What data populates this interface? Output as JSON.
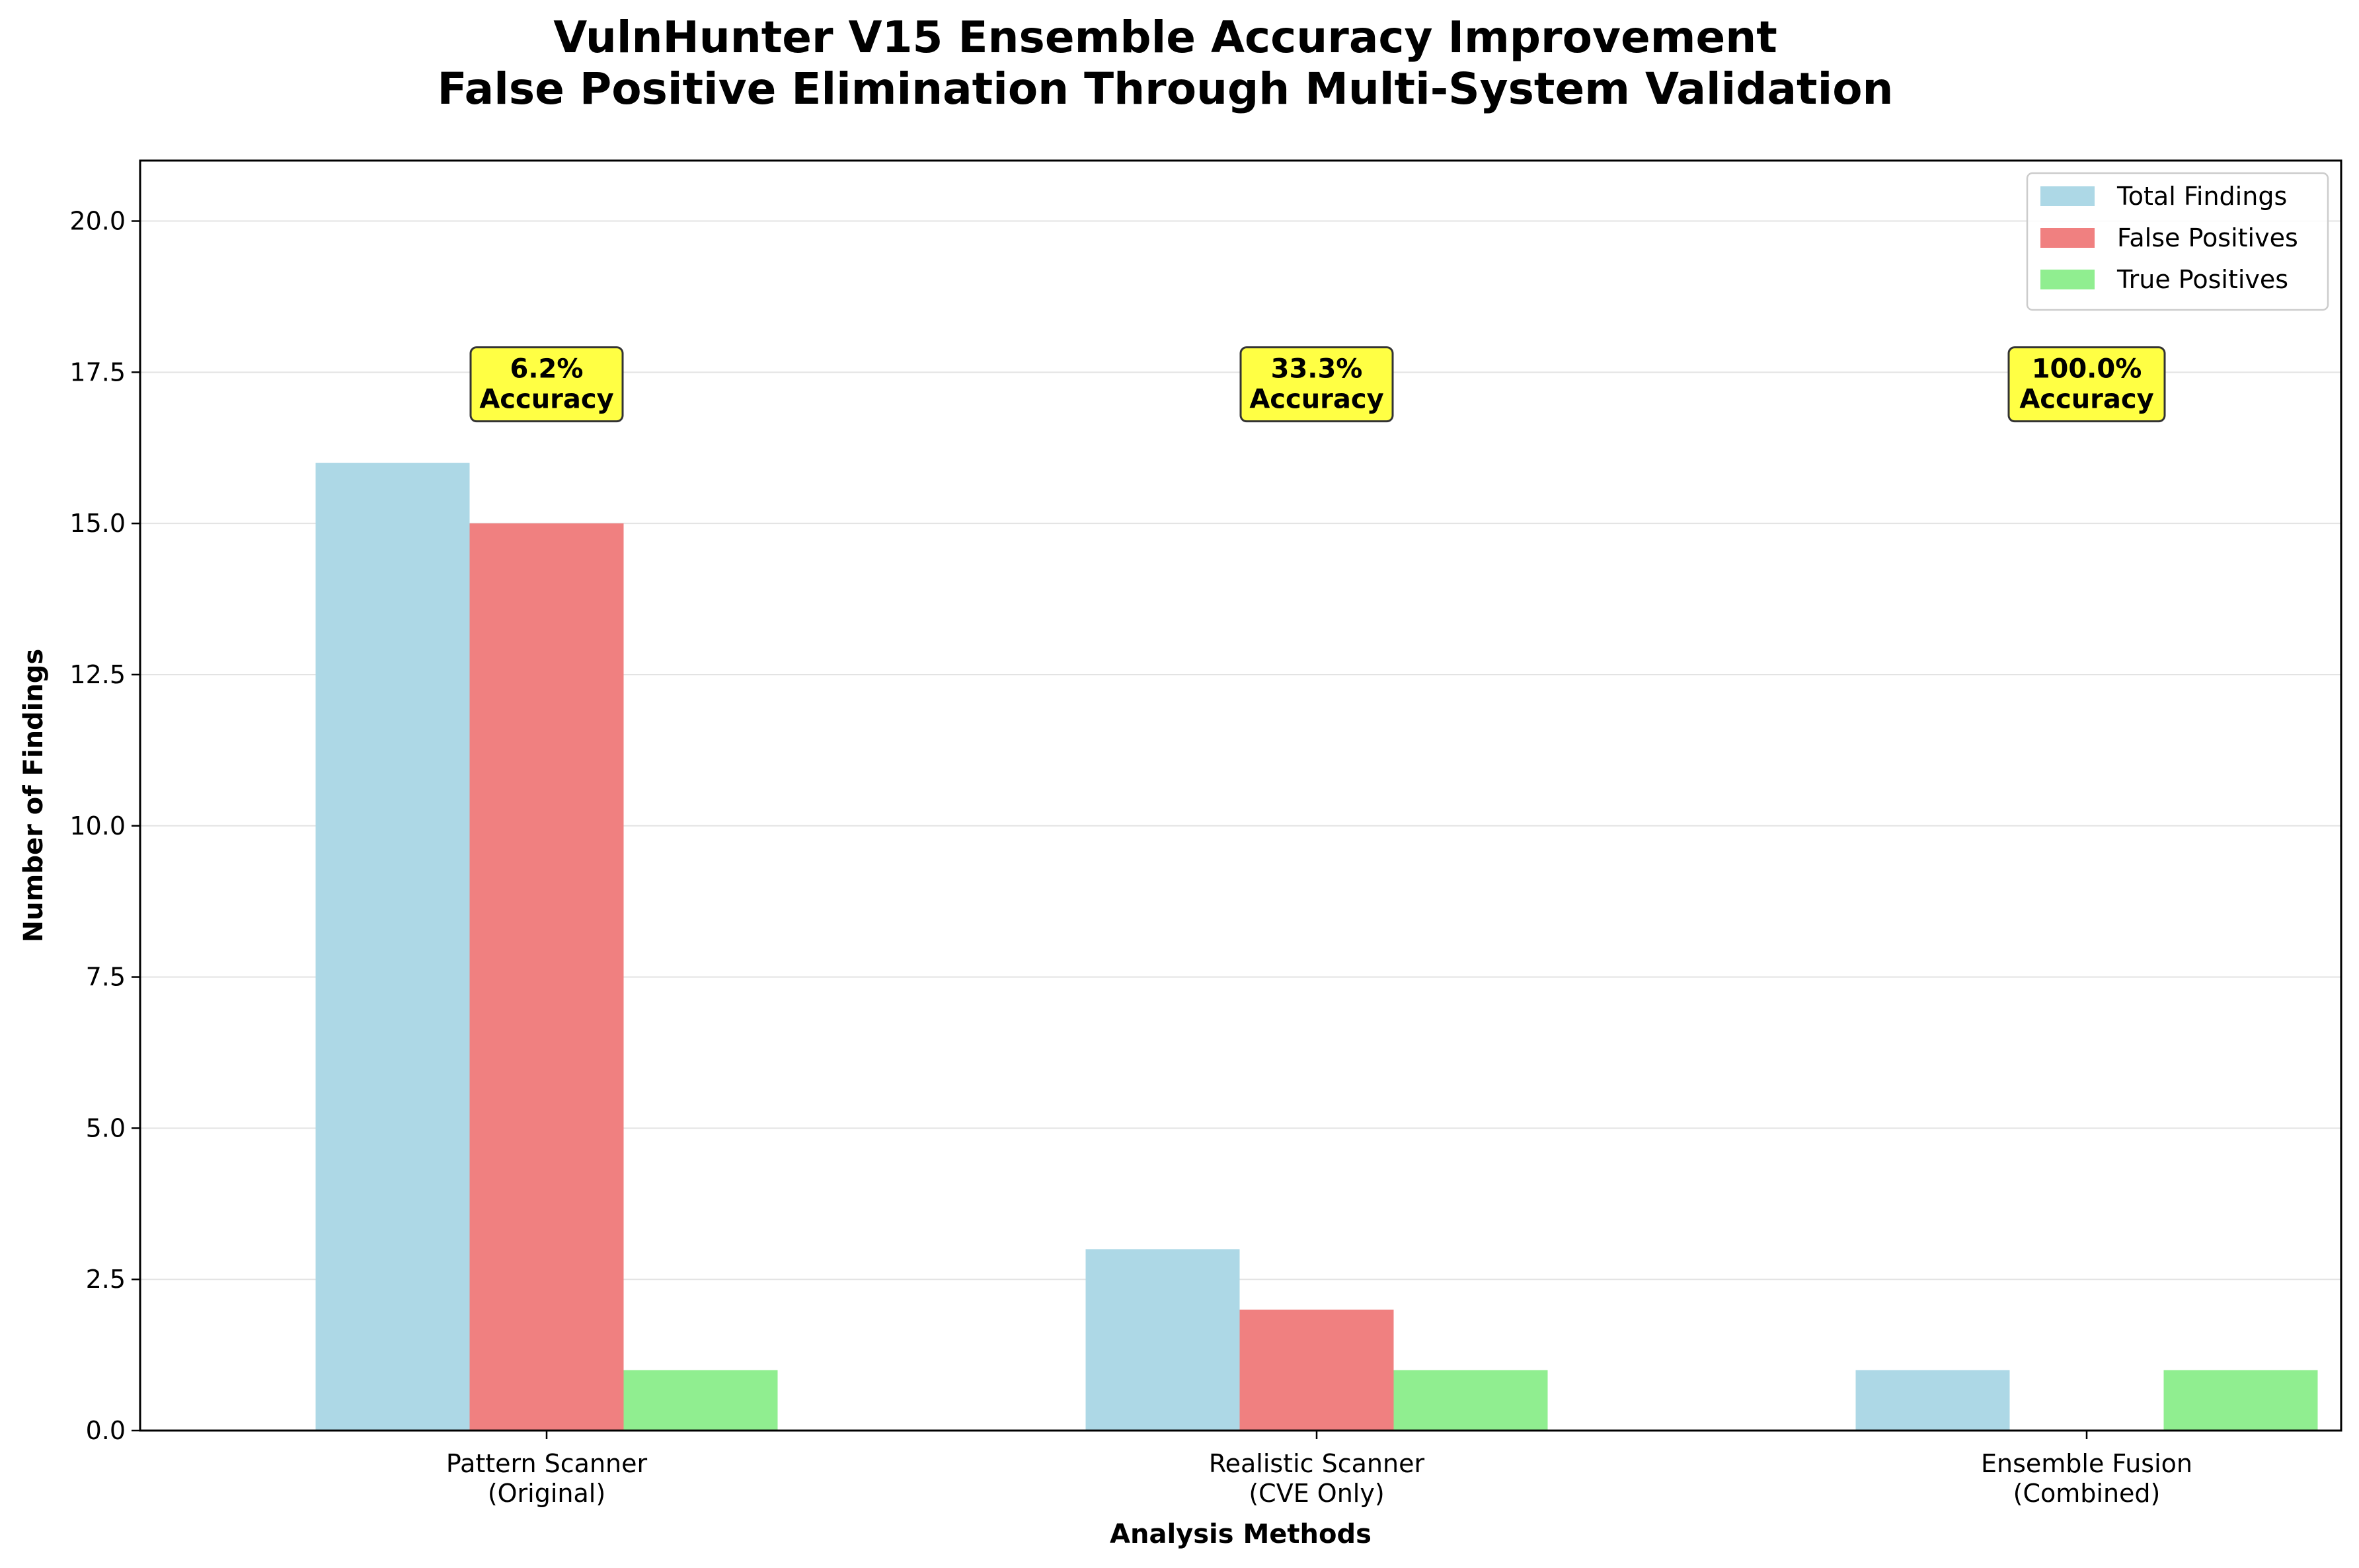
{
  "chart_data": {
    "type": "bar",
    "title_lines": [
      "VulnHunter V15 Ensemble Accuracy Improvement",
      "False Positive Elimination Through Multi-System Validation"
    ],
    "xlabel": "Analysis Methods",
    "ylabel": "Number of Findings",
    "categories": [
      [
        "Pattern Scanner",
        "(Original)"
      ],
      [
        "Realistic Scanner",
        "(CVE Only)"
      ],
      [
        "Ensemble Fusion",
        "(Combined)"
      ]
    ],
    "series": [
      {
        "name": "Total Findings",
        "color": "#add8e6",
        "values": [
          16,
          3,
          1
        ]
      },
      {
        "name": "False Positives",
        "color": "#f08080",
        "values": [
          15,
          2,
          0
        ]
      },
      {
        "name": "True Positives",
        "color": "#90ee90",
        "values": [
          1,
          1,
          1
        ]
      }
    ],
    "annotations": [
      {
        "category": 0,
        "lines": [
          "6.2%",
          "Accuracy"
        ],
        "y": 17.3
      },
      {
        "category": 1,
        "lines": [
          "33.3%",
          "Accuracy"
        ],
        "y": 17.3
      },
      {
        "category": 2,
        "lines": [
          "100.0%",
          "Accuracy"
        ],
        "y": 17.3
      }
    ],
    "annotation_color": "#ffff44",
    "ylim": [
      0,
      21
    ],
    "yticks": [
      "0.0",
      "2.5",
      "5.0",
      "7.5",
      "10.0",
      "12.5",
      "15.0",
      "17.5",
      "20.0"
    ],
    "grid": "horizontal",
    "legend_position": "top-right"
  }
}
